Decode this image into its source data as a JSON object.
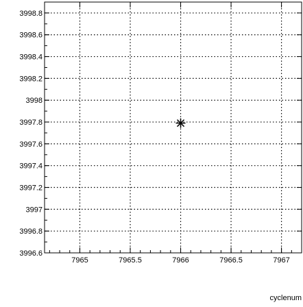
{
  "chart_data": {
    "type": "scatter",
    "title": "",
    "xlabel": "cyclenum",
    "ylabel": "",
    "xlim": [
      7964.65,
      7967.2
    ],
    "ylim": [
      3996.6,
      3998.9
    ],
    "x_ticks": [
      7965,
      7965.5,
      7966,
      7966.5,
      7967
    ],
    "x_tick_labels": [
      "7965",
      "7965.5",
      "7966",
      "7966.5",
      "7967"
    ],
    "y_ticks": [
      3996.6,
      3996.8,
      3997,
      3997.2,
      3997.4,
      3997.6,
      3997.8,
      3998,
      3998.2,
      3998.4,
      3998.6,
      3998.8
    ],
    "y_tick_labels": [
      "3996.6",
      "3996.8",
      "3997",
      "3997.2",
      "3997.4",
      "3997.6",
      "3997.8",
      "3998",
      "3998.2",
      "3998.4",
      "3998.6",
      "3998.8"
    ],
    "grid": true,
    "marker": "asterisk",
    "series": [
      {
        "points": [
          {
            "x": 7966,
            "y": 3997.79
          }
        ]
      }
    ]
  },
  "colors": {
    "axis": "#000000",
    "grid": "#000000",
    "marker": "#000000",
    "background": "#ffffff"
  }
}
